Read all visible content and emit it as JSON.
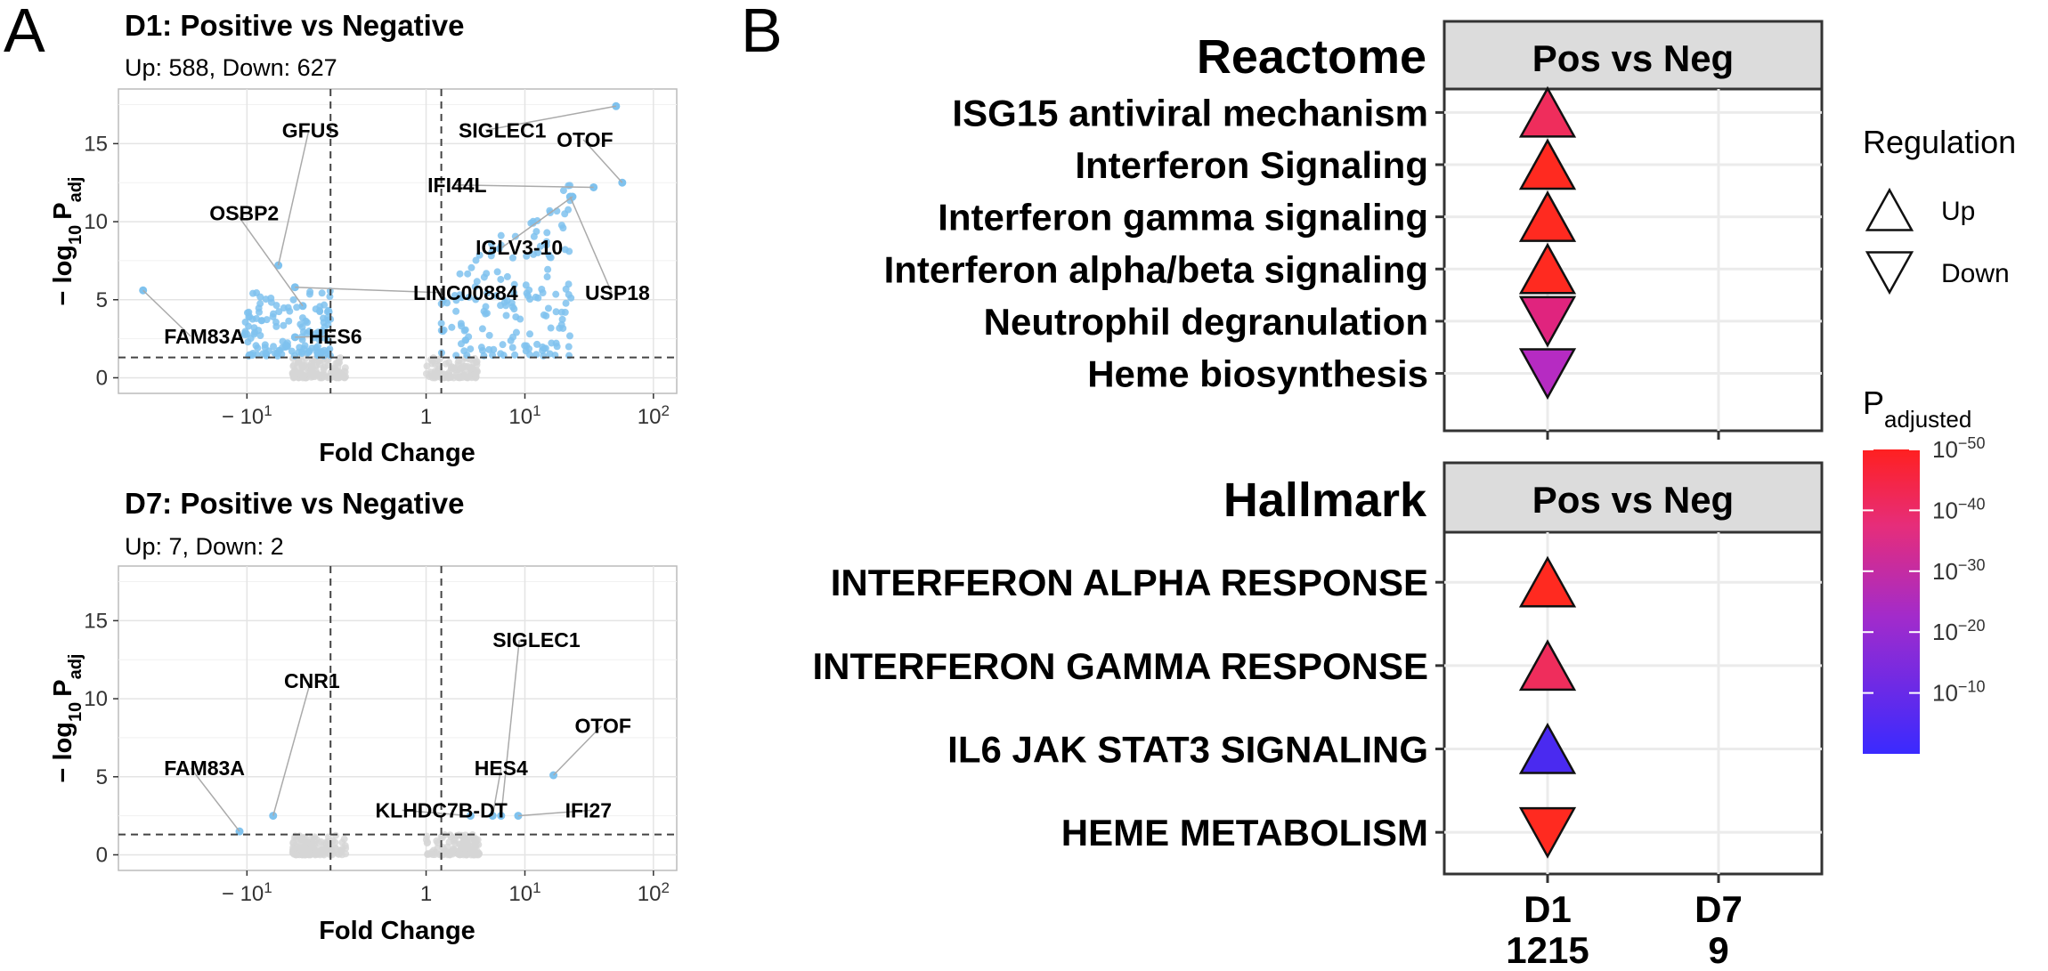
{
  "panel_a": {
    "letter": "A",
    "x_axis_title": "Fold Change",
    "y_axis_title_main": "− log",
    "y_axis_title_sub10": "10",
    "y_axis_title_p": "P",
    "y_axis_title_psub": "adj",
    "x_ticks": [
      {
        "value": -10,
        "base": "− 10",
        "exp": "1"
      },
      {
        "value": 1,
        "base": "1",
        "exp": ""
      },
      {
        "value": 10,
        "base": "10",
        "exp": "1"
      },
      {
        "value": 100,
        "base": "10",
        "exp": "2"
      }
    ],
    "y_ticks": [
      "0",
      "5",
      "10",
      "15"
    ],
    "plots": [
      {
        "title": "D1: Positive vs Negative",
        "subtitle": "Up: 588, Down: 627",
        "labels": [
          {
            "text": "GFUS",
            "x": -5.4,
            "y": 7.2,
            "lx": -5.0,
            "ly": 15.4
          },
          {
            "text": "SIGLEC1",
            "x": 52,
            "y": 17.4,
            "lx": 2.5,
            "ly": 15.4
          },
          {
            "text": "OTOF",
            "x": 58,
            "y": 12.5,
            "lx": 18,
            "ly": 14.8
          },
          {
            "text": "IFI44L",
            "x": 35,
            "y": 12.2,
            "lx": 1.05,
            "ly": 11.9
          },
          {
            "text": "OSBP2",
            "x": -3.2,
            "y": 4.6,
            "lx": -20,
            "ly": 10.1
          },
          {
            "text": "IGLV3-10",
            "x": 24,
            "y": 11.6,
            "lx": 3.7,
            "ly": 7.9
          },
          {
            "text": "LINC00884",
            "x": -3.8,
            "y": 5.8,
            "lx": 0.6,
            "ly": 5.0
          },
          {
            "text": "USP18",
            "x": 23,
            "y": 11.6,
            "lx": 30,
            "ly": 5.0
          },
          {
            "text": "FAM83A",
            "x": -65,
            "y": 5.6,
            "lx": -45,
            "ly": 2.2
          },
          {
            "text": "HES6",
            "x": -3.8,
            "y": 2.6,
            "lx": -2.8,
            "ly": 2.2
          }
        ]
      },
      {
        "title": "D7: Positive vs Negative",
        "subtitle": "Up: 7, Down: 2",
        "labels": [
          {
            "text": "SIGLEC1",
            "x": 6.3,
            "y": 2.5,
            "lx": 5.3,
            "ly": 13.3
          },
          {
            "text": "CNR1",
            "x": -6.0,
            "y": 2.5,
            "lx": -4.8,
            "ly": 10.7
          },
          {
            "text": "OTOF",
            "x": 17,
            "y": 5.1,
            "lx": 25,
            "ly": 7.8
          },
          {
            "text": "FAM83A",
            "x": -11.5,
            "y": 1.5,
            "lx": -45,
            "ly": 5.1
          },
          {
            "text": "HES4",
            "x": 5.3,
            "y": 2.5,
            "lx": 3.6,
            "ly": 5.1
          },
          {
            "text": "KLHDC7B-DT",
            "x": 3.3,
            "y": 2.5,
            "lx": -0.2,
            "ly": 2.4
          },
          {
            "text": "IFI27",
            "x": 8.8,
            "y": 2.5,
            "lx": 21,
            "ly": 2.4
          }
        ]
      }
    ]
  },
  "panel_b": {
    "letter": "B",
    "x_categories": [
      {
        "name": "D1",
        "count": "1215"
      },
      {
        "name": "D7",
        "count": "9"
      }
    ],
    "facets": [
      {
        "db": "Reactome",
        "strip": "Pos vs Neg",
        "pathways": [
          {
            "name": "ISG15 antiviral mechanism",
            "regulation": "Up",
            "log10_padj": -35,
            "color": "#EF2D5C"
          },
          {
            "name": "Interferon Signaling",
            "regulation": "Up",
            "log10_padj": -49,
            "color": "#FF2A20"
          },
          {
            "name": "Interferon gamma signaling",
            "regulation": "Up",
            "log10_padj": -49,
            "color": "#FF2A20"
          },
          {
            "name": "Interferon alpha/beta signaling",
            "regulation": "Up",
            "log10_padj": -49,
            "color": "#FF2A20"
          },
          {
            "name": "Neutrophil degranulation",
            "regulation": "Down",
            "log10_padj": -27,
            "color": "#E0247E"
          },
          {
            "name": "Heme biosynthesis",
            "regulation": "Down",
            "log10_padj": -18,
            "color": "#B62BC2"
          }
        ]
      },
      {
        "db": "Hallmark",
        "strip": "Pos vs Neg",
        "pathways": [
          {
            "name": "INTERFERON ALPHA RESPONSE",
            "regulation": "Up",
            "log10_padj": -49,
            "color": "#FF2A20"
          },
          {
            "name": "INTERFERON GAMMA RESPONSE",
            "regulation": "Up",
            "log10_padj": -36,
            "color": "#EF2D5C"
          },
          {
            "name": "IL6 JAK STAT3 SIGNALING",
            "regulation": "Up",
            "log10_padj": -3,
            "color": "#4A2AF0"
          },
          {
            "name": "HEME METABOLISM",
            "regulation": "Down",
            "log10_padj": -49,
            "color": "#FF2A20"
          }
        ]
      }
    ],
    "legend_regulation": {
      "title": "Regulation",
      "items": [
        {
          "shape": "up",
          "label": "Up"
        },
        {
          "shape": "down",
          "label": "Down"
        }
      ]
    },
    "legend_padj": {
      "title_main": "P",
      "title_sub": "adjusted",
      "ticks": [
        {
          "value": -50,
          "base": "10",
          "exp": "−50"
        },
        {
          "value": -40,
          "base": "10",
          "exp": "−40"
        },
        {
          "value": -30,
          "base": "10",
          "exp": "−30"
        },
        {
          "value": -20,
          "base": "10",
          "exp": "−20"
        },
        {
          "value": -10,
          "base": "10",
          "exp": "−10"
        }
      ],
      "range": [
        -50,
        0
      ],
      "colors": [
        "#3A2AFF",
        "#FF2020"
      ]
    }
  }
}
